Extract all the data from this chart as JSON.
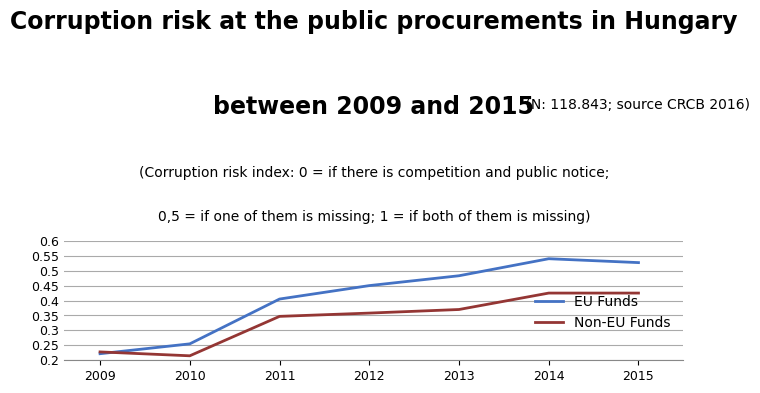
{
  "title_line1": "Corruption risk at the public procurements in Hungary",
  "title_line2": "between 2009 and 2015",
  "title_suffix": " (N: 118.843; source CRCB 2016)",
  "subtitle_line1": "(Corruption risk index: 0 = if there is competition and public notice;",
  "subtitle_line2": "0,5 = if one of them is missing; 1 = if both of them is missing)",
  "years": [
    2009,
    2010,
    2011,
    2012,
    2013,
    2014,
    2015
  ],
  "eu_funds": [
    0.222,
    0.255,
    0.405,
    0.45,
    0.483,
    0.54,
    0.527
  ],
  "non_eu_funds": [
    0.228,
    0.215,
    0.347,
    0.358,
    0.37,
    0.425,
    0.425
  ],
  "eu_color": "#4472C4",
  "non_eu_color": "#943634",
  "ylim": [
    0.2,
    0.6
  ],
  "yticks": [
    0.2,
    0.25,
    0.3,
    0.35,
    0.4,
    0.45,
    0.5,
    0.55,
    0.6
  ],
  "legend_eu": "EU Funds",
  "legend_non_eu": "Non-EU Funds",
  "bg_color": "#FFFFFF",
  "grid_color": "#AAAAAA",
  "title1_fontsize": 17,
  "title2_fontsize": 17,
  "suffix_fontsize": 10,
  "subtitle_fontsize": 10,
  "tick_fontsize": 9,
  "legend_fontsize": 10
}
